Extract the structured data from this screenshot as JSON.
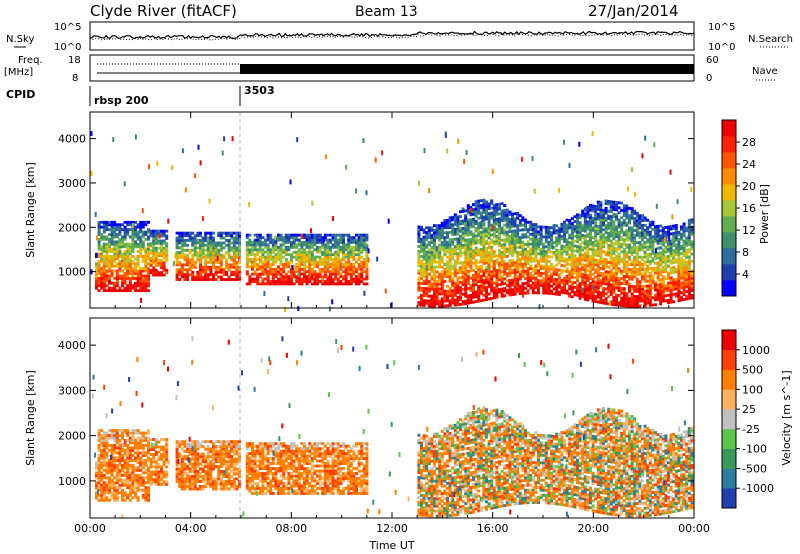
{
  "header": {
    "station": "Clyde River (fitACF)",
    "beam": "Beam 13",
    "date": "27/Jan/2014"
  },
  "panels": {
    "nsky_label": "N.Sky",
    "nsky_ticks": [
      "10^5",
      "10^0"
    ],
    "nsearch_label": "N.Search",
    "nsearch_ticks": [
      "10^5",
      "10^0"
    ],
    "freq_label": "Freq.",
    "freq_unit": "[MHz]",
    "freq_ticks": [
      "18",
      "8"
    ],
    "nave_label": "Nave",
    "nave_ticks": [
      "60",
      "0"
    ],
    "cpid_label": "CPID",
    "cpid_segments": [
      {
        "label": "rbsp 200",
        "start_hour": 0,
        "end_hour": 6
      },
      {
        "label": "3503",
        "start_hour": 6,
        "end_hour": 24
      }
    ]
  },
  "chart_data": [
    {
      "type": "heatmap",
      "ylabel": "Slant Range [km]",
      "x_tick_labels": [
        "00:00",
        "04:00",
        "08:00",
        "12:00",
        "16:00",
        "20:00",
        "00:00"
      ],
      "xlabel": "Time UT",
      "x_range_hours": [
        0,
        24
      ],
      "yticks": [
        1000,
        2000,
        3000,
        4000
      ],
      "ylim": [
        180,
        4600
      ],
      "colorbar": {
        "label": "Power [dB]",
        "tick_labels": [
          "28",
          "24",
          "20",
          "16",
          "12",
          "8",
          "4"
        ],
        "colors": [
          "#0000ff",
          "#1f3fb0",
          "#2e6e9e",
          "#3f8f6a",
          "#62ad4e",
          "#a8c83a",
          "#f2b800",
          "#ff8c00",
          "#ff5500",
          "#ff2000",
          "#ee0000"
        ]
      }
    },
    {
      "type": "heatmap",
      "ylabel": "Slant Range [km]",
      "x_tick_labels": [
        "00:00",
        "04:00",
        "08:00",
        "12:00",
        "16:00",
        "20:00",
        "00:00"
      ],
      "xlabel": "Time UT",
      "x_range_hours": [
        0,
        24
      ],
      "yticks": [
        1000,
        2000,
        3000,
        4000
      ],
      "ylim": [
        180,
        4600
      ],
      "colorbar": {
        "label": "Velocity [m s^-1]",
        "tick_labels": [
          "1000",
          "500",
          "100",
          "25",
          "-25",
          "-100",
          "-500",
          "-1000"
        ],
        "colors": [
          "#2040b0",
          "#2a7fa0",
          "#3a9a5a",
          "#5ac84a",
          "#c0c0c0",
          "#ffb060",
          "#ff8000",
          "#ff4000",
          "#ee0000"
        ]
      }
    }
  ]
}
